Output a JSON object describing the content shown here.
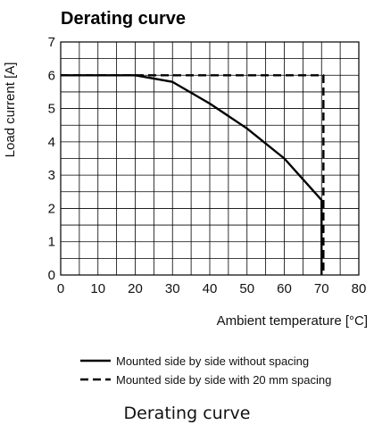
{
  "chart_data": {
    "type": "line",
    "title": "Derating curve",
    "xlabel": "Ambient temperature [°C]",
    "ylabel": "Load current [A]",
    "xlim": [
      0,
      80
    ],
    "ylim": [
      0,
      7
    ],
    "xticks": [
      0,
      10,
      20,
      30,
      40,
      50,
      60,
      70,
      80
    ],
    "yticks": [
      0,
      1,
      2,
      3,
      4,
      5,
      6,
      7
    ],
    "grid": true,
    "legend_position": "bottom",
    "series": [
      {
        "name": "Mounted side by side without spacing",
        "style": "solid",
        "x": [
          0,
          20,
          30,
          40,
          50,
          60,
          70,
          70
        ],
        "y": [
          6,
          6,
          5.8,
          5.15,
          4.4,
          3.5,
          2.25,
          0
        ]
      },
      {
        "name": "Mounted side by side with 20 mm spacing",
        "style": "dashed",
        "x": [
          0,
          70.5,
          70.5
        ],
        "y": [
          6,
          6,
          0
        ]
      }
    ]
  },
  "caption": "Derating curve"
}
